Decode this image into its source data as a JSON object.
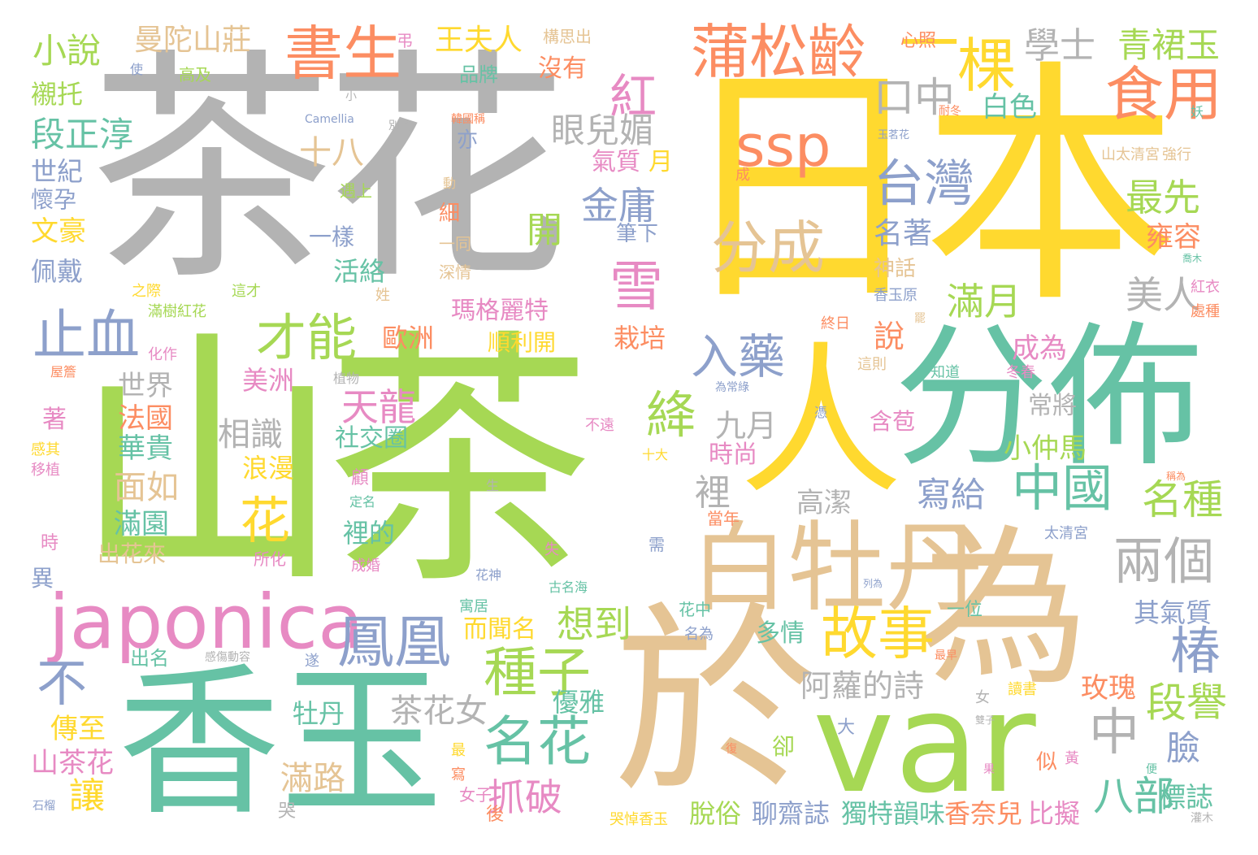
{
  "palette": {
    "green": "#A6D854",
    "gray": "#B3B3B3",
    "yellow": "#FFD92F",
    "teal": "#66C2A5",
    "tan": "#E5C494",
    "orange": "#FC8D62",
    "pink": "#E78AC3",
    "blue": "#8DA0CB"
  },
  "words": [
    {
      "text": "山茶",
      "color": "green"
    },
    {
      "text": "茶花",
      "color": "gray"
    },
    {
      "text": "日本",
      "color": "yellow"
    },
    {
      "text": "香玉",
      "color": "teal"
    },
    {
      "text": "於",
      "color": "tan"
    },
    {
      "text": "var",
      "color": "green"
    },
    {
      "text": "為",
      "color": "tan"
    },
    {
      "text": "分佈",
      "color": "teal"
    },
    {
      "text": "人",
      "color": "yellow"
    },
    {
      "text": "白牡丹",
      "color": "tan"
    },
    {
      "text": "japonica",
      "color": "pink"
    },
    {
      "text": "蒲松齡",
      "color": "orange"
    },
    {
      "text": "書生",
      "color": "orange"
    },
    {
      "text": "棵",
      "color": "yellow"
    },
    {
      "text": "食用",
      "color": "orange"
    },
    {
      "text": "ssp",
      "color": "orange"
    },
    {
      "text": "分成",
      "color": "tan"
    },
    {
      "text": "台灣",
      "color": "blue"
    },
    {
      "text": "中國",
      "color": "teal"
    },
    {
      "text": "鳳凰",
      "color": "blue"
    },
    {
      "text": "故事",
      "color": "yellow"
    },
    {
      "text": "名花",
      "color": "teal"
    },
    {
      "text": "種子",
      "color": "green"
    },
    {
      "text": "止血",
      "color": "blue"
    },
    {
      "text": "才能",
      "color": "green"
    },
    {
      "text": "雪",
      "color": "pink"
    },
    {
      "text": "入藥",
      "color": "blue"
    },
    {
      "text": "紅",
      "color": "pink"
    },
    {
      "text": "一",
      "color": "yellow"
    },
    {
      "text": "絳",
      "color": "green"
    },
    {
      "text": "花",
      "color": "yellow"
    },
    {
      "text": "兩個",
      "color": "gray"
    },
    {
      "text": "椿",
      "color": "blue"
    },
    {
      "text": "中",
      "color": "gray"
    },
    {
      "text": "不",
      "color": "blue"
    },
    {
      "text": "段譽",
      "color": "green"
    },
    {
      "text": "八部",
      "color": "teal"
    },
    {
      "text": "名種",
      "color": "green"
    },
    {
      "text": "學士",
      "color": "gray"
    },
    {
      "text": "青裙玉",
      "color": "green"
    },
    {
      "text": "口中",
      "color": "gray"
    },
    {
      "text": "最先",
      "color": "green"
    },
    {
      "text": "美人",
      "color": "gray"
    },
    {
      "text": "滿月",
      "color": "green"
    },
    {
      "text": "金庸",
      "color": "blue"
    },
    {
      "text": "天龍",
      "color": "pink"
    },
    {
      "text": "抓破",
      "color": "pink"
    },
    {
      "text": "想到",
      "color": "green"
    },
    {
      "text": "眼兒媚",
      "color": "gray"
    },
    {
      "text": "段正淳",
      "color": "teal"
    },
    {
      "text": "小說",
      "color": "green"
    },
    {
      "text": "曼陀山莊",
      "color": "tan"
    },
    {
      "text": "十八",
      "color": "tan"
    },
    {
      "text": "寫給",
      "color": "blue"
    },
    {
      "text": "阿蘿的詩",
      "color": "gray"
    },
    {
      "text": "茶花女",
      "color": "gray"
    },
    {
      "text": "王夫人",
      "color": "yellow"
    },
    {
      "text": "相識",
      "color": "gray"
    },
    {
      "text": "九月",
      "color": "gray"
    },
    {
      "text": "裡",
      "color": "gray"
    },
    {
      "text": "開",
      "color": "green"
    },
    {
      "text": "白色",
      "color": "teal"
    },
    {
      "text": "名著",
      "color": "blue"
    },
    {
      "text": "說",
      "color": "orange"
    },
    {
      "text": "成為",
      "color": "pink"
    },
    {
      "text": "雍容",
      "color": "orange"
    },
    {
      "text": "小仲馬",
      "color": "green"
    },
    {
      "text": "臉",
      "color": "blue"
    },
    {
      "text": "玫瑰",
      "color": "orange"
    },
    {
      "text": "其氣質",
      "color": "blue"
    },
    {
      "text": "標誌",
      "color": "teal"
    },
    {
      "text": "比擬",
      "color": "pink"
    },
    {
      "text": "香奈兒",
      "color": "orange"
    },
    {
      "text": "獨特韻味",
      "color": "teal"
    },
    {
      "text": "聊齋誌",
      "color": "blue"
    },
    {
      "text": "脫俗",
      "color": "green"
    },
    {
      "text": "優雅",
      "color": "teal"
    },
    {
      "text": "牡丹",
      "color": "teal"
    },
    {
      "text": "滿路",
      "color": "tan"
    },
    {
      "text": "讓",
      "color": "yellow"
    },
    {
      "text": "傳至",
      "color": "yellow"
    },
    {
      "text": "山茶花",
      "color": "pink"
    },
    {
      "text": "面如",
      "color": "tan"
    },
    {
      "text": "滿園",
      "color": "teal"
    },
    {
      "text": "出花來",
      "color": "tan"
    },
    {
      "text": "華貴",
      "color": "teal"
    },
    {
      "text": "法國",
      "color": "orange"
    },
    {
      "text": "世界",
      "color": "gray"
    },
    {
      "text": "美洲",
      "color": "pink"
    },
    {
      "text": "浪漫",
      "color": "yellow"
    },
    {
      "text": "社交圈",
      "color": "teal"
    },
    {
      "text": "裡的",
      "color": "teal"
    },
    {
      "text": "歐洲",
      "color": "orange"
    },
    {
      "text": "瑪格麗特",
      "color": "pink"
    },
    {
      "text": "順利開",
      "color": "yellow"
    },
    {
      "text": "栽培",
      "color": "orange"
    },
    {
      "text": "活絡",
      "color": "teal"
    },
    {
      "text": "一樣",
      "color": "blue"
    },
    {
      "text": "氣質",
      "color": "pink"
    },
    {
      "text": "月",
      "color": "yellow"
    },
    {
      "text": "細",
      "color": "orange"
    },
    {
      "text": "筆下",
      "color": "blue"
    },
    {
      "text": "高潔",
      "color": "gray"
    },
    {
      "text": "時尚",
      "color": "pink"
    },
    {
      "text": "多情",
      "color": "teal"
    },
    {
      "text": "而聞名",
      "color": "yellow"
    },
    {
      "text": "含苞",
      "color": "pink"
    },
    {
      "text": "常將",
      "color": "gray"
    },
    {
      "text": "神話",
      "color": "tan"
    },
    {
      "text": "文豪",
      "color": "yellow"
    },
    {
      "text": "佩戴",
      "color": "blue"
    },
    {
      "text": "懷孕",
      "color": "blue"
    },
    {
      "text": "世紀",
      "color": "blue"
    },
    {
      "text": "襯托",
      "color": "green"
    },
    {
      "text": "沒有",
      "color": "orange"
    },
    {
      "text": "品牌",
      "color": "teal"
    },
    {
      "text": "高及",
      "color": "green"
    },
    {
      "text": "心照",
      "color": "orange"
    },
    {
      "text": "構思出",
      "color": "tan"
    },
    {
      "text": "亦",
      "color": "blue"
    },
    {
      "text": "著",
      "color": "pink"
    },
    {
      "text": "異",
      "color": "blue"
    },
    {
      "text": "時",
      "color": "pink"
    },
    {
      "text": "一位",
      "color": "teal"
    },
    {
      "text": "太清宮",
      "color": "blue"
    },
    {
      "text": "山太清宮",
      "color": "tan"
    },
    {
      "text": "強行",
      "color": "tan"
    },
    {
      "text": "香玉原",
      "color": "blue"
    },
    {
      "text": "紅衣",
      "color": "pink"
    },
    {
      "text": "處種",
      "color": "orange"
    },
    {
      "text": "終日",
      "color": "orange"
    },
    {
      "text": "這則",
      "color": "tan"
    },
    {
      "text": "知道",
      "color": "teal"
    },
    {
      "text": "冬春",
      "color": "pink"
    },
    {
      "text": "深情",
      "color": "tan"
    },
    {
      "text": "一同",
      "color": "tan"
    },
    {
      "text": "遇上",
      "color": "green"
    },
    {
      "text": "這才",
      "color": "green"
    },
    {
      "text": "之際",
      "color": "yellow"
    },
    {
      "text": "姓",
      "color": "tan"
    },
    {
      "text": "滿樹紅花",
      "color": "green"
    },
    {
      "text": "化作",
      "color": "pink"
    },
    {
      "text": "屋簷",
      "color": "orange"
    },
    {
      "text": "植物",
      "color": "gray"
    },
    {
      "text": "感其",
      "color": "yellow"
    },
    {
      "text": "移植",
      "color": "pink"
    },
    {
      "text": "不遠",
      "color": "pink"
    },
    {
      "text": "十大",
      "color": "yellow"
    },
    {
      "text": "為常綠",
      "color": "blue"
    },
    {
      "text": "當年",
      "color": "orange"
    },
    {
      "text": "定名",
      "color": "teal"
    },
    {
      "text": "所化",
      "color": "pink"
    },
    {
      "text": "成婚",
      "color": "pink"
    },
    {
      "text": "花神",
      "color": "blue"
    },
    {
      "text": "寓居",
      "color": "teal"
    },
    {
      "text": "古名海",
      "color": "teal"
    },
    {
      "text": "需",
      "color": "blue"
    },
    {
      "text": "花中",
      "color": "teal"
    },
    {
      "text": "名為",
      "color": "blue"
    },
    {
      "text": "出名",
      "color": "teal"
    },
    {
      "text": "感傷動容",
      "color": "gray"
    },
    {
      "text": "遂",
      "color": "blue"
    },
    {
      "text": "最早",
      "color": "orange"
    },
    {
      "text": "讀書",
      "color": "yellow"
    },
    {
      "text": "哭",
      "color": "gray"
    },
    {
      "text": "哭悼香玉",
      "color": "yellow"
    },
    {
      "text": "女子",
      "color": "pink"
    },
    {
      "text": "最",
      "color": "yellow"
    },
    {
      "text": "寫",
      "color": "orange"
    },
    {
      "text": "卻",
      "color": "green"
    },
    {
      "text": "大",
      "color": "blue"
    },
    {
      "text": "女",
      "color": "gray"
    },
    {
      "text": "後",
      "color": "orange"
    },
    {
      "text": "復",
      "color": "orange"
    },
    {
      "text": "石榴",
      "color": "blue"
    },
    {
      "text": "黃",
      "color": "pink"
    },
    {
      "text": "灌木",
      "color": "gray"
    },
    {
      "text": "雙子",
      "color": "gray"
    },
    {
      "text": "便",
      "color": "teal"
    },
    {
      "text": "使",
      "color": "blue"
    },
    {
      "text": "果",
      "color": "pink"
    },
    {
      "text": "生",
      "color": "gray"
    },
    {
      "text": "顧",
      "color": "pink"
    },
    {
      "text": "失",
      "color": "pink"
    },
    {
      "text": "列為",
      "color": "blue"
    },
    {
      "text": "稱為",
      "color": "orange"
    },
    {
      "text": "憑",
      "color": "blue"
    },
    {
      "text": "成",
      "color": "orange"
    },
    {
      "text": "韓國稱",
      "color": "orange"
    },
    {
      "text": "耐冬",
      "color": "orange"
    },
    {
      "text": "別名",
      "color": "gray"
    },
    {
      "text": "小",
      "color": "gray"
    },
    {
      "text": "Camellia",
      "color": "blue"
    },
    {
      "text": "動",
      "color": "tan"
    },
    {
      "text": "玉茗花",
      "color": "blue"
    },
    {
      "text": "妖",
      "color": "teal"
    },
    {
      "text": "喬木",
      "color": "teal"
    },
    {
      "text": "罷",
      "color": "tan"
    },
    {
      "text": "弔",
      "color": "pink"
    },
    {
      "text": "使",
      "color": "blue"
    },
    {
      "text": "似",
      "color": "orange"
    }
  ]
}
